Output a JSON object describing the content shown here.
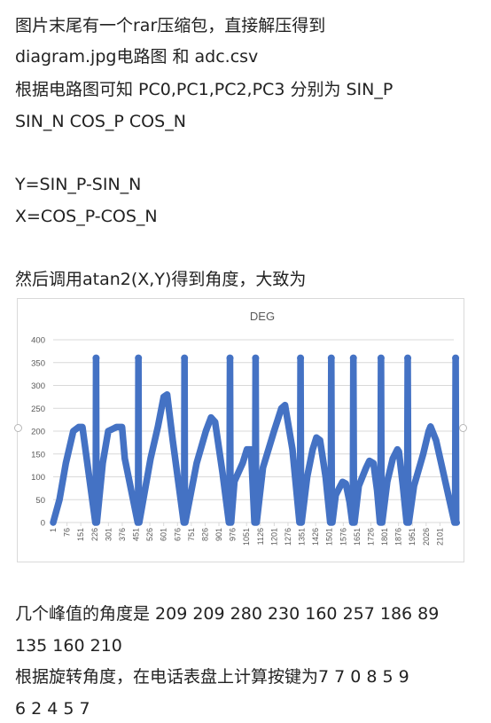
{
  "lines": [
    "图片末尾有一个rar压缩包，直接解压得到",
    "diagram.jpg电路图 和 adc.csv",
    "根据电路图可知 PC0,PC1,PC2,PC3 分别为 SIN_P",
    "SIN_N COS_P COS_N",
    "Y=SIN_P-SIN_N",
    "X=COS_P-COS_N",
    "然后调用atan2(X,Y)得到角度，大致为",
    "几个峰值的角度是 209 209 280 230 160 257 186 89",
    "135 160 210",
    "根据旋转角度，在电话表盘上计算按键为7 7 0 8 5 9",
    "6 2 4 5 7"
  ],
  "colors": {
    "series": "#4472c4",
    "grid": "#d9d9d9",
    "axis_text": "#595959"
  },
  "chart_data": {
    "type": "line",
    "title": "DEG",
    "xlabel": "",
    "ylabel": "",
    "ylim": [
      0,
      400
    ],
    "yticks": [
      0,
      50,
      100,
      150,
      200,
      250,
      300,
      350,
      400
    ],
    "xlim": [
      1,
      2176
    ],
    "xticks": [
      1,
      76,
      151,
      226,
      301,
      376,
      451,
      526,
      601,
      676,
      751,
      826,
      901,
      976,
      1051,
      1126,
      1201,
      1276,
      1351,
      1426,
      1501,
      1576,
      1651,
      1726,
      1801,
      1876,
      1951,
      2026,
      2101
    ],
    "grid": true,
    "series": [
      {
        "x": [
          1,
          35,
          70,
          110,
          140,
          160,
          230,
          232,
          234,
          236,
          238,
          270,
          300,
          345,
          375,
          390,
          460,
          462,
          464,
          466,
          468,
          530,
          570,
          601,
          620,
          650,
          710,
          712,
          714,
          716,
          718,
          780,
          830,
          858,
          880,
          920,
          955,
          958,
          961,
          964,
          967,
          985,
          1030,
          1053,
          1075,
          1080,
          1094,
          1097,
          1100,
          1103,
          1106,
          1140,
          1200,
          1240,
          1260,
          1300,
          1338,
          1341,
          1344,
          1347,
          1350,
          1380,
          1410,
          1430,
          1450,
          1480,
          1505,
          1508,
          1511,
          1514,
          1517,
          1535,
          1560,
          1572,
          1590,
          1610,
          1625,
          1628,
          1631,
          1634,
          1637,
          1660,
          1700,
          1718,
          1740,
          1760,
          1775,
          1778,
          1781,
          1784,
          1787,
          1815,
          1845,
          1870,
          1878,
          1900,
          1920,
          1923,
          1926,
          1929,
          1932,
          1960,
          2010,
          2040,
          2050,
          2080,
          2180,
          2183,
          2186,
          2189,
          2192
        ],
        "y": [
          0,
          50,
          130,
          200,
          209,
          209,
          0,
          0,
          360,
          0,
          0,
          130,
          200,
          209,
          209,
          140,
          0,
          0,
          360,
          0,
          0,
          140,
          210,
          275,
          280,
          180,
          0,
          0,
          360,
          0,
          0,
          130,
          200,
          230,
          220,
          110,
          0,
          0,
          360,
          0,
          0,
          90,
          130,
          160,
          160,
          120,
          0,
          0,
          360,
          0,
          0,
          120,
          200,
          250,
          257,
          160,
          0,
          0,
          360,
          0,
          0,
          100,
          160,
          186,
          180,
          100,
          0,
          0,
          360,
          0,
          0,
          60,
          80,
          89,
          85,
          45,
          0,
          0,
          360,
          0,
          0,
          80,
          120,
          135,
          130,
          70,
          0,
          0,
          360,
          0,
          0,
          90,
          140,
          160,
          155,
          80,
          0,
          0,
          360,
          0,
          0,
          80,
          150,
          200,
          210,
          180,
          0,
          0,
          360,
          0,
          0
        ]
      }
    ]
  }
}
